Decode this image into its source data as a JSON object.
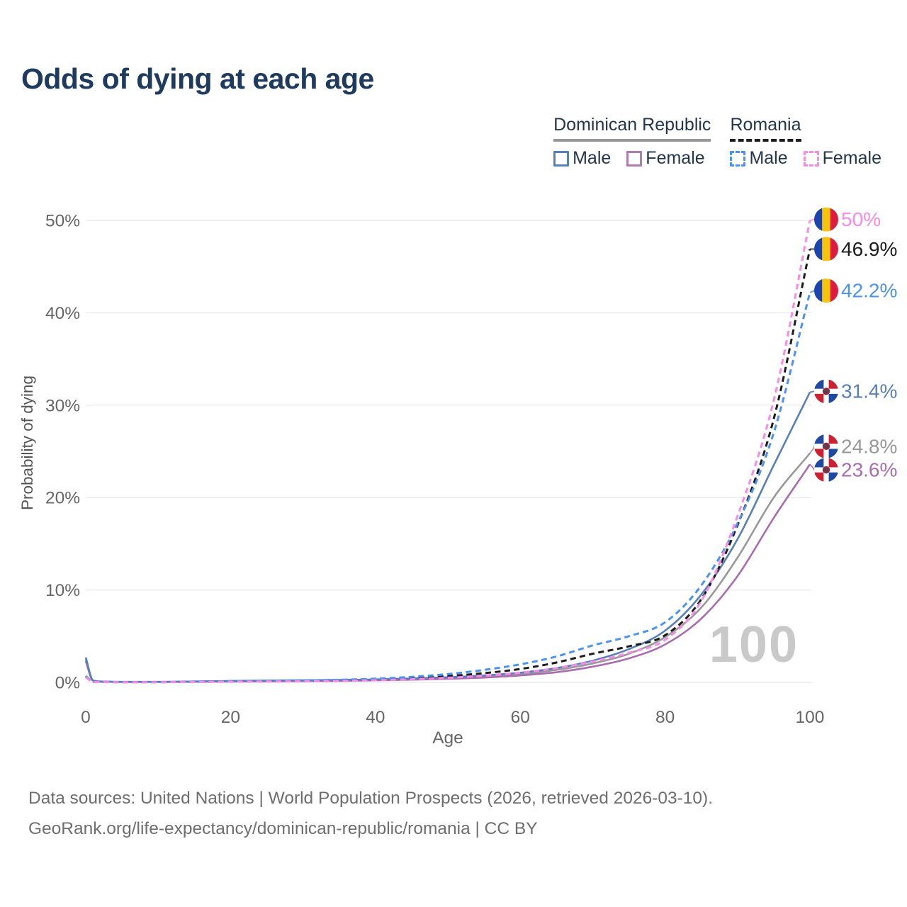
{
  "title": "Odds of dying at each age",
  "legend": {
    "groups": [
      {
        "label": "Dominican Republic",
        "line_style": "solid",
        "line_color": "#999999",
        "items": [
          {
            "label": "Male",
            "color": "#5580b8",
            "line_style": "solid"
          },
          {
            "label": "Female",
            "color": "#b279b3",
            "line_style": "solid"
          }
        ]
      },
      {
        "label": "Romania",
        "line_style": "dashed",
        "line_color": "#1c1c1c",
        "items": [
          {
            "label": "Male",
            "color": "#4b93f2",
            "line_style": "dashed"
          },
          {
            "label": "Female",
            "color": "#fb8ae6",
            "line_style": "dashed"
          }
        ]
      }
    ]
  },
  "chart_data": {
    "type": "line",
    "title": "Odds of dying at each age",
    "xlabel": "Age",
    "ylabel": "Probability of dying",
    "xlim": [
      0,
      100
    ],
    "ylim": [
      0,
      50
    ],
    "x_ticks": [
      0,
      20,
      40,
      60,
      80,
      100
    ],
    "y_tick_values": [
      0,
      10,
      20,
      30,
      40,
      50
    ],
    "y_ticks": [
      "0%",
      "10%",
      "20%",
      "30%",
      "40%",
      "50%"
    ],
    "grid": "horizontal",
    "legend_position": "top-right",
    "watermark": "100",
    "series": [
      {
        "name": "Dominican Republic — Both sexes",
        "country": "dominican_republic",
        "sex": "both",
        "color": "#999999",
        "dashed": false,
        "end_label": "24.8%",
        "end_value": 24.8,
        "label_pct": 25.55,
        "points": [
          [
            0,
            2.5
          ],
          [
            1,
            0.2
          ],
          [
            2,
            0.09
          ],
          [
            5,
            0.055
          ],
          [
            10,
            0.055
          ],
          [
            15,
            0.085
          ],
          [
            20,
            0.13
          ],
          [
            25,
            0.16
          ],
          [
            30,
            0.19
          ],
          [
            35,
            0.22
          ],
          [
            40,
            0.27
          ],
          [
            45,
            0.35
          ],
          [
            50,
            0.45
          ],
          [
            55,
            0.62
          ],
          [
            60,
            0.9
          ],
          [
            65,
            1.35
          ],
          [
            70,
            2.05
          ],
          [
            75,
            3.1
          ],
          [
            80,
            4.9
          ],
          [
            85,
            8.1
          ],
          [
            90,
            13.5
          ],
          [
            95,
            20.0
          ],
          [
            100,
            24.8
          ]
        ]
      },
      {
        "name": "Dominican Republic — Female",
        "country": "dominican_republic",
        "sex": "female",
        "color": "#a96cb0",
        "dashed": false,
        "end_label": "23.6%",
        "end_value": 23.6,
        "label_pct": 23.0,
        "points": [
          [
            0,
            2.3
          ],
          [
            1,
            0.18
          ],
          [
            2,
            0.08
          ],
          [
            5,
            0.05
          ],
          [
            10,
            0.05
          ],
          [
            15,
            0.07
          ],
          [
            20,
            0.09
          ],
          [
            25,
            0.11
          ],
          [
            30,
            0.14
          ],
          [
            35,
            0.17
          ],
          [
            40,
            0.22
          ],
          [
            45,
            0.29
          ],
          [
            50,
            0.38
          ],
          [
            55,
            0.52
          ],
          [
            60,
            0.75
          ],
          [
            65,
            1.1
          ],
          [
            70,
            1.7
          ],
          [
            75,
            2.6
          ],
          [
            80,
            4.1
          ],
          [
            85,
            6.9
          ],
          [
            90,
            11.5
          ],
          [
            95,
            17.8
          ],
          [
            100,
            23.6
          ]
        ]
      },
      {
        "name": "Dominican Republic — Male",
        "country": "dominican_republic",
        "sex": "male",
        "color": "#5580b8",
        "dashed": false,
        "end_label": "31.4%",
        "end_value": 31.4,
        "label_pct": 31.5,
        "points": [
          [
            0,
            2.7
          ],
          [
            1,
            0.22
          ],
          [
            2,
            0.1
          ],
          [
            5,
            0.06
          ],
          [
            10,
            0.06
          ],
          [
            15,
            0.1
          ],
          [
            20,
            0.16
          ],
          [
            25,
            0.2
          ],
          [
            30,
            0.23
          ],
          [
            35,
            0.27
          ],
          [
            40,
            0.32
          ],
          [
            45,
            0.42
          ],
          [
            50,
            0.55
          ],
          [
            55,
            0.75
          ],
          [
            60,
            1.05
          ],
          [
            65,
            1.55
          ],
          [
            70,
            2.35
          ],
          [
            75,
            3.6
          ],
          [
            80,
            5.6
          ],
          [
            85,
            9.5
          ],
          [
            90,
            15.5
          ],
          [
            95,
            23.5
          ],
          [
            100,
            31.4
          ]
        ]
      },
      {
        "name": "Romania — Both sexes",
        "country": "romania",
        "sex": "both",
        "color": "#1c1c1c",
        "dashed": true,
        "end_label": "46.9%",
        "end_value": 46.9,
        "label_pct": 46.9,
        "points": [
          [
            0,
            0.62
          ],
          [
            1,
            0.055
          ],
          [
            2,
            0.035
          ],
          [
            5,
            0.027
          ],
          [
            10,
            0.027
          ],
          [
            15,
            0.055
          ],
          [
            20,
            0.1
          ],
          [
            25,
            0.13
          ],
          [
            30,
            0.16
          ],
          [
            35,
            0.22
          ],
          [
            40,
            0.3
          ],
          [
            45,
            0.45
          ],
          [
            50,
            0.68
          ],
          [
            55,
            1.0
          ],
          [
            60,
            1.45
          ],
          [
            65,
            2.15
          ],
          [
            70,
            3.1
          ],
          [
            75,
            3.9
          ],
          [
            80,
            5.1
          ],
          [
            85,
            9.0
          ],
          [
            90,
            17.0
          ],
          [
            95,
            28.5
          ],
          [
            100,
            46.9
          ]
        ]
      },
      {
        "name": "Romania — Male",
        "country": "romania",
        "sex": "male",
        "color": "#4b93f2",
        "dashed": true,
        "end_label": "42.2%",
        "end_value": 42.2,
        "label_pct": 42.4,
        "points": [
          [
            0,
            0.7
          ],
          [
            1,
            0.06
          ],
          [
            2,
            0.04
          ],
          [
            5,
            0.03
          ],
          [
            10,
            0.03
          ],
          [
            15,
            0.07
          ],
          [
            20,
            0.13
          ],
          [
            25,
            0.17
          ],
          [
            30,
            0.21
          ],
          [
            35,
            0.28
          ],
          [
            40,
            0.4
          ],
          [
            45,
            0.6
          ],
          [
            50,
            0.9
          ],
          [
            55,
            1.35
          ],
          [
            60,
            1.95
          ],
          [
            65,
            2.8
          ],
          [
            70,
            4.0
          ],
          [
            75,
            5.0
          ],
          [
            80,
            6.5
          ],
          [
            85,
            10.5
          ],
          [
            90,
            17.2
          ],
          [
            95,
            27.0
          ],
          [
            100,
            42.2
          ]
        ]
      },
      {
        "name": "Romania — Female",
        "country": "romania",
        "sex": "female",
        "color": "#fb8ae6",
        "dashed": true,
        "end_label": "50%",
        "end_value": 50.0,
        "label_pct": 50.1,
        "points": [
          [
            0,
            0.55
          ],
          [
            1,
            0.05
          ],
          [
            2,
            0.03
          ],
          [
            5,
            0.024
          ],
          [
            10,
            0.024
          ],
          [
            15,
            0.04
          ],
          [
            20,
            0.07
          ],
          [
            25,
            0.09
          ],
          [
            30,
            0.12
          ],
          [
            35,
            0.16
          ],
          [
            40,
            0.23
          ],
          [
            45,
            0.34
          ],
          [
            50,
            0.5
          ],
          [
            55,
            0.72
          ],
          [
            60,
            1.05
          ],
          [
            65,
            1.55
          ],
          [
            70,
            2.25
          ],
          [
            75,
            3.2
          ],
          [
            80,
            4.6
          ],
          [
            85,
            8.8
          ],
          [
            90,
            18.0
          ],
          [
            95,
            30.5
          ],
          [
            100,
            50.0
          ]
        ]
      }
    ]
  },
  "flags": {
    "romania": {
      "blue": "#1b44ae",
      "yellow": "#f6c40e",
      "red": "#dd1c3e"
    },
    "dominican_republic": {
      "blue": "#1f49a0",
      "red": "#cc2033",
      "white": "#ffffff",
      "emblem_outer": "#8c2f45",
      "emblem_inner": "#53424e"
    }
  },
  "footer": {
    "line1": "Data sources: United Nations | World Population Prospects (2026, retrieved 2026-03-10).",
    "line2": "GeoRank.org/life-expectancy/dominican-republic/romania | CC BY"
  }
}
